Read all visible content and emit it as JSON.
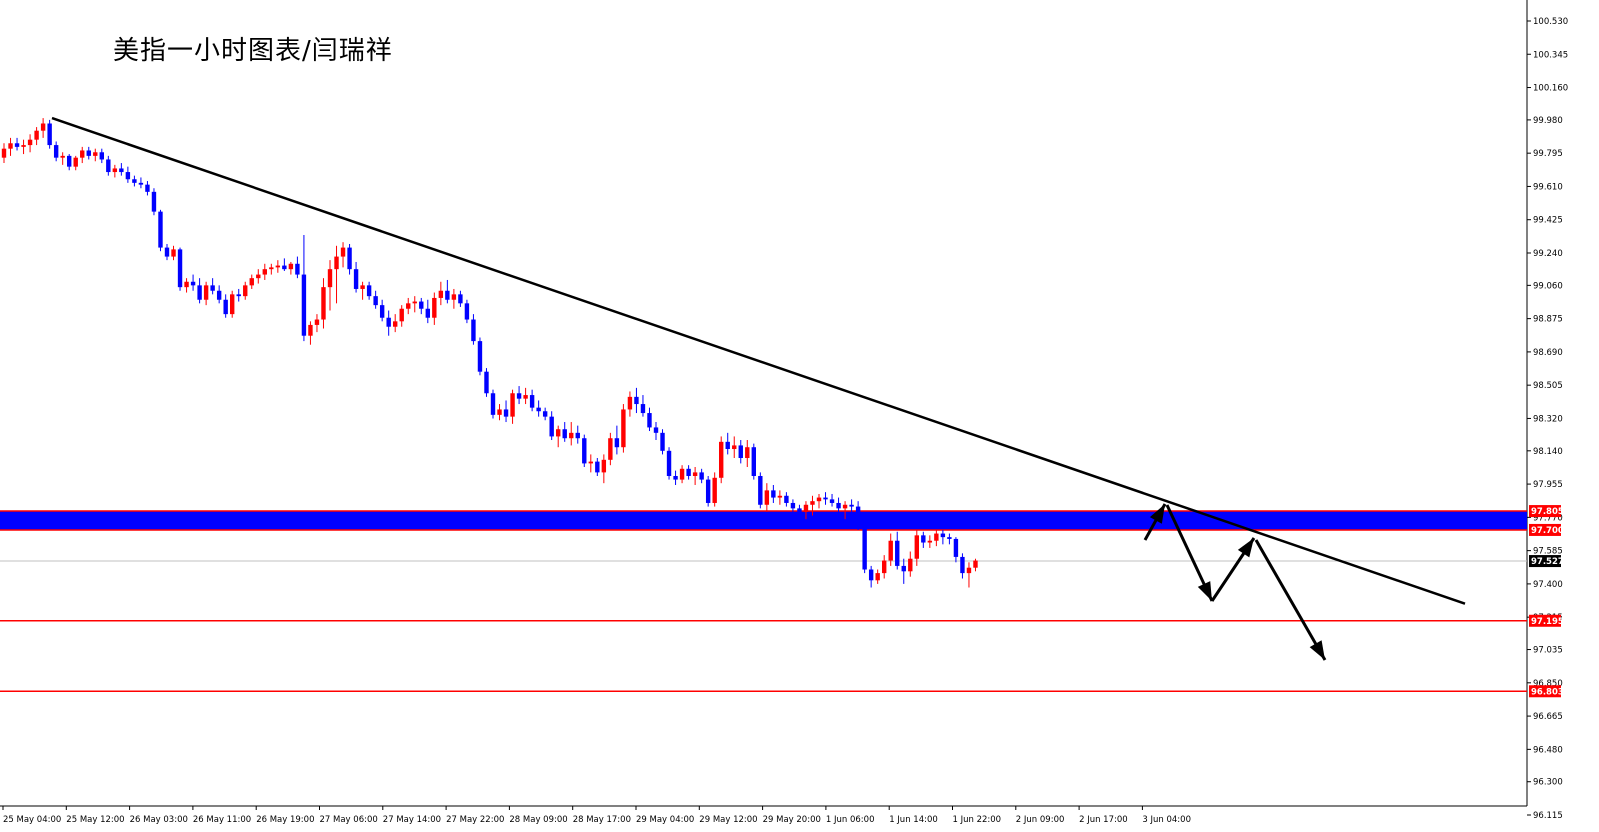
{
  "title": "美指一小时图表/闫瑞祥",
  "chart_data": {
    "type": "candlestick",
    "title": "美指一小时图表/闫瑞祥",
    "ylim": [
      96.115,
      100.63
    ],
    "y_ticks": [
      "100.530",
      "100.345",
      "100.160",
      "99.980",
      "99.795",
      "99.610",
      "99.425",
      "99.240",
      "99.060",
      "98.875",
      "98.690",
      "98.505",
      "98.320",
      "98.140",
      "97.955",
      "97.770",
      "97.585",
      "97.400",
      "97.215",
      "97.035",
      "96.850",
      "96.665",
      "96.480",
      "96.300",
      "96.115"
    ],
    "x_ticks": [
      "25 May 04:00",
      "25 May 12:00",
      "26 May 03:00",
      "26 May 11:00",
      "26 May 19:00",
      "27 May 06:00",
      "27 May 14:00",
      "27 May 22:00",
      "28 May 09:00",
      "28 May 17:00",
      "29 May 04:00",
      "29 May 12:00",
      "29 May 20:00",
      "1 Jun 06:00",
      "1 Jun 14:00",
      "1 Jun 22:00",
      "2 Jun 09:00",
      "2 Jun 17:00",
      "3 Jun 04:00"
    ],
    "price_levels": [
      {
        "label": "97.805",
        "value": 97.805,
        "color": "#ff0000"
      },
      {
        "label": "97.700",
        "value": 97.7,
        "color": "#ff0000"
      },
      {
        "label": "97.195",
        "value": 97.195,
        "color": "#ff0000"
      },
      {
        "label": "96.803",
        "value": 96.803,
        "color": "#ff0000"
      }
    ],
    "current_price": {
      "label": "97.527",
      "value": 97.527
    },
    "zone": {
      "from": 97.7,
      "to": 97.805,
      "color": "#0000ff"
    },
    "colors": {
      "bull": "#ff0000",
      "bear": "#0000ff",
      "trendline": "#000000",
      "arrows": "#000000"
    },
    "trendline": [
      [
        "25 May 04:00",
        99.99
      ],
      [
        "3 Jun 04:00+",
        97.29
      ]
    ],
    "candles": [
      {
        "o": 99.77,
        "h": 99.85,
        "l": 99.74,
        "c": 99.82
      },
      {
        "o": 99.82,
        "h": 99.88,
        "l": 99.78,
        "c": 99.85
      },
      {
        "o": 99.85,
        "h": 99.88,
        "l": 99.81,
        "c": 99.83
      },
      {
        "o": 99.83,
        "h": 99.87,
        "l": 99.79,
        "c": 99.84
      },
      {
        "o": 99.84,
        "h": 99.9,
        "l": 99.8,
        "c": 99.87
      },
      {
        "o": 99.87,
        "h": 99.94,
        "l": 99.84,
        "c": 99.92
      },
      {
        "o": 99.92,
        "h": 99.99,
        "l": 99.88,
        "c": 99.96
      },
      {
        "o": 99.96,
        "h": 99.98,
        "l": 99.82,
        "c": 99.84
      },
      {
        "o": 99.84,
        "h": 99.86,
        "l": 99.75,
        "c": 99.77
      },
      {
        "o": 99.77,
        "h": 99.8,
        "l": 99.73,
        "c": 99.78
      },
      {
        "o": 99.78,
        "h": 99.79,
        "l": 99.7,
        "c": 99.72
      },
      {
        "o": 99.72,
        "h": 99.78,
        "l": 99.7,
        "c": 99.77
      },
      {
        "o": 99.77,
        "h": 99.83,
        "l": 99.74,
        "c": 99.81
      },
      {
        "o": 99.81,
        "h": 99.83,
        "l": 99.76,
        "c": 99.78
      },
      {
        "o": 99.78,
        "h": 99.82,
        "l": 99.75,
        "c": 99.8
      },
      {
        "o": 99.8,
        "h": 99.82,
        "l": 99.74,
        "c": 99.76
      },
      {
        "o": 99.76,
        "h": 99.78,
        "l": 99.67,
        "c": 99.69
      },
      {
        "o": 99.69,
        "h": 99.73,
        "l": 99.66,
        "c": 99.71
      },
      {
        "o": 99.71,
        "h": 99.74,
        "l": 99.67,
        "c": 99.69
      },
      {
        "o": 99.69,
        "h": 99.72,
        "l": 99.63,
        "c": 99.65
      },
      {
        "o": 99.65,
        "h": 99.67,
        "l": 99.61,
        "c": 99.63
      },
      {
        "o": 99.63,
        "h": 99.66,
        "l": 99.6,
        "c": 99.62
      },
      {
        "o": 99.62,
        "h": 99.64,
        "l": 99.56,
        "c": 99.58
      },
      {
        "o": 99.58,
        "h": 99.6,
        "l": 99.45,
        "c": 99.47
      },
      {
        "o": 99.47,
        "h": 99.48,
        "l": 99.25,
        "c": 99.27
      },
      {
        "o": 99.27,
        "h": 99.29,
        "l": 99.2,
        "c": 99.22
      },
      {
        "o": 99.22,
        "h": 99.28,
        "l": 99.2,
        "c": 99.26
      },
      {
        "o": 99.26,
        "h": 99.27,
        "l": 99.03,
        "c": 99.05
      },
      {
        "o": 99.05,
        "h": 99.1,
        "l": 99.02,
        "c": 99.08
      },
      {
        "o": 99.08,
        "h": 99.12,
        "l": 99.03,
        "c": 99.06
      },
      {
        "o": 99.06,
        "h": 99.1,
        "l": 98.96,
        "c": 98.98
      },
      {
        "o": 98.98,
        "h": 99.08,
        "l": 98.95,
        "c": 99.06
      },
      {
        "o": 99.06,
        "h": 99.1,
        "l": 99.01,
        "c": 99.03
      },
      {
        "o": 99.03,
        "h": 99.06,
        "l": 98.96,
        "c": 98.98
      },
      {
        "o": 98.98,
        "h": 99.01,
        "l": 98.88,
        "c": 98.9
      },
      {
        "o": 98.9,
        "h": 99.03,
        "l": 98.88,
        "c": 99.01
      },
      {
        "o": 99.01,
        "h": 99.04,
        "l": 98.97,
        "c": 99.0
      },
      {
        "o": 99.0,
        "h": 99.08,
        "l": 98.98,
        "c": 99.06
      },
      {
        "o": 99.06,
        "h": 99.12,
        "l": 99.04,
        "c": 99.1
      },
      {
        "o": 99.1,
        "h": 99.15,
        "l": 99.07,
        "c": 99.12
      },
      {
        "o": 99.12,
        "h": 99.18,
        "l": 99.09,
        "c": 99.15
      },
      {
        "o": 99.15,
        "h": 99.18,
        "l": 99.12,
        "c": 99.16
      },
      {
        "o": 99.16,
        "h": 99.2,
        "l": 99.13,
        "c": 99.17
      },
      {
        "o": 99.17,
        "h": 99.21,
        "l": 99.14,
        "c": 99.15
      },
      {
        "o": 99.15,
        "h": 99.19,
        "l": 99.12,
        "c": 99.18
      },
      {
        "o": 99.18,
        "h": 99.22,
        "l": 99.1,
        "c": 99.12
      },
      {
        "o": 99.12,
        "h": 99.34,
        "l": 98.75,
        "c": 98.78
      },
      {
        "o": 98.78,
        "h": 98.86,
        "l": 98.73,
        "c": 98.84
      },
      {
        "o": 98.84,
        "h": 98.9,
        "l": 98.8,
        "c": 98.87
      },
      {
        "o": 98.87,
        "h": 99.1,
        "l": 98.82,
        "c": 99.05
      },
      {
        "o": 99.05,
        "h": 99.2,
        "l": 98.92,
        "c": 99.15
      },
      {
        "o": 99.15,
        "h": 99.28,
        "l": 98.96,
        "c": 99.22
      },
      {
        "o": 99.22,
        "h": 99.3,
        "l": 99.16,
        "c": 99.27
      },
      {
        "o": 99.27,
        "h": 99.29,
        "l": 99.12,
        "c": 99.15
      },
      {
        "o": 99.15,
        "h": 99.19,
        "l": 99.02,
        "c": 99.04
      },
      {
        "o": 99.04,
        "h": 99.08,
        "l": 98.98,
        "c": 99.06
      },
      {
        "o": 99.06,
        "h": 99.08,
        "l": 98.98,
        "c": 99.0
      },
      {
        "o": 99.0,
        "h": 99.03,
        "l": 98.93,
        "c": 98.95
      },
      {
        "o": 98.95,
        "h": 98.98,
        "l": 98.86,
        "c": 98.88
      },
      {
        "o": 98.88,
        "h": 98.92,
        "l": 98.78,
        "c": 98.83
      },
      {
        "o": 98.83,
        "h": 98.9,
        "l": 98.8,
        "c": 98.86
      },
      {
        "o": 98.86,
        "h": 98.95,
        "l": 98.83,
        "c": 98.93
      },
      {
        "o": 98.93,
        "h": 98.99,
        "l": 98.9,
        "c": 98.96
      },
      {
        "o": 98.96,
        "h": 99.0,
        "l": 98.91,
        "c": 98.97
      },
      {
        "o": 98.97,
        "h": 98.99,
        "l": 98.9,
        "c": 98.93
      },
      {
        "o": 98.93,
        "h": 98.98,
        "l": 98.85,
        "c": 98.88
      },
      {
        "o": 98.88,
        "h": 99.02,
        "l": 98.84,
        "c": 98.99
      },
      {
        "o": 98.99,
        "h": 99.08,
        "l": 98.95,
        "c": 99.03
      },
      {
        "o": 99.03,
        "h": 99.09,
        "l": 98.96,
        "c": 98.98
      },
      {
        "o": 98.98,
        "h": 99.04,
        "l": 98.93,
        "c": 99.01
      },
      {
        "o": 99.01,
        "h": 99.03,
        "l": 98.94,
        "c": 98.96
      },
      {
        "o": 98.96,
        "h": 98.98,
        "l": 98.85,
        "c": 98.87
      },
      {
        "o": 98.87,
        "h": 98.9,
        "l": 98.73,
        "c": 98.75
      },
      {
        "o": 98.75,
        "h": 98.77,
        "l": 98.56,
        "c": 98.58
      },
      {
        "o": 98.58,
        "h": 98.6,
        "l": 98.44,
        "c": 98.46
      },
      {
        "o": 98.46,
        "h": 98.48,
        "l": 98.32,
        "c": 98.34
      },
      {
        "o": 98.34,
        "h": 98.4,
        "l": 98.31,
        "c": 98.37
      },
      {
        "o": 98.37,
        "h": 98.42,
        "l": 98.3,
        "c": 98.33
      },
      {
        "o": 98.33,
        "h": 98.48,
        "l": 98.29,
        "c": 98.46
      },
      {
        "o": 98.46,
        "h": 98.5,
        "l": 98.4,
        "c": 98.43
      },
      {
        "o": 98.43,
        "h": 98.49,
        "l": 98.4,
        "c": 98.45
      },
      {
        "o": 98.45,
        "h": 98.48,
        "l": 98.36,
        "c": 98.38
      },
      {
        "o": 98.38,
        "h": 98.42,
        "l": 98.33,
        "c": 98.36
      },
      {
        "o": 98.36,
        "h": 98.38,
        "l": 98.31,
        "c": 98.33
      },
      {
        "o": 98.33,
        "h": 98.36,
        "l": 98.2,
        "c": 98.22
      },
      {
        "o": 98.22,
        "h": 98.28,
        "l": 98.16,
        "c": 98.26
      },
      {
        "o": 98.26,
        "h": 98.3,
        "l": 98.19,
        "c": 98.21
      },
      {
        "o": 98.21,
        "h": 98.3,
        "l": 98.17,
        "c": 98.24
      },
      {
        "o": 98.24,
        "h": 98.28,
        "l": 98.18,
        "c": 98.21
      },
      {
        "o": 98.21,
        "h": 98.23,
        "l": 98.05,
        "c": 98.07
      },
      {
        "o": 98.07,
        "h": 98.12,
        "l": 98.02,
        "c": 98.08
      },
      {
        "o": 98.08,
        "h": 98.1,
        "l": 98.0,
        "c": 98.02
      },
      {
        "o": 98.02,
        "h": 98.12,
        "l": 97.96,
        "c": 98.09
      },
      {
        "o": 98.09,
        "h": 98.24,
        "l": 98.06,
        "c": 98.21
      },
      {
        "o": 98.21,
        "h": 98.28,
        "l": 98.12,
        "c": 98.16
      },
      {
        "o": 98.16,
        "h": 98.4,
        "l": 98.13,
        "c": 98.37
      },
      {
        "o": 98.37,
        "h": 98.47,
        "l": 98.33,
        "c": 98.44
      },
      {
        "o": 98.44,
        "h": 98.49,
        "l": 98.35,
        "c": 98.4
      },
      {
        "o": 98.4,
        "h": 98.45,
        "l": 98.33,
        "c": 98.35
      },
      {
        "o": 98.35,
        "h": 98.38,
        "l": 98.25,
        "c": 98.27
      },
      {
        "o": 98.27,
        "h": 98.3,
        "l": 98.2,
        "c": 98.24
      },
      {
        "o": 98.24,
        "h": 98.26,
        "l": 98.12,
        "c": 98.14
      },
      {
        "o": 98.14,
        "h": 98.16,
        "l": 97.98,
        "c": 98.0
      },
      {
        "o": 98.0,
        "h": 98.03,
        "l": 97.95,
        "c": 97.98
      },
      {
        "o": 97.98,
        "h": 98.06,
        "l": 97.96,
        "c": 98.04
      },
      {
        "o": 98.04,
        "h": 98.06,
        "l": 97.98,
        "c": 98.0
      },
      {
        "o": 98.0,
        "h": 98.05,
        "l": 97.95,
        "c": 98.02
      },
      {
        "o": 98.02,
        "h": 98.04,
        "l": 97.96,
        "c": 97.98
      },
      {
        "o": 97.98,
        "h": 98.0,
        "l": 97.83,
        "c": 97.85
      },
      {
        "o": 97.85,
        "h": 98.02,
        "l": 97.83,
        "c": 97.99
      },
      {
        "o": 97.99,
        "h": 98.22,
        "l": 97.96,
        "c": 98.19
      },
      {
        "o": 98.19,
        "h": 98.24,
        "l": 98.12,
        "c": 98.15
      },
      {
        "o": 98.15,
        "h": 98.22,
        "l": 98.1,
        "c": 98.17
      },
      {
        "o": 98.17,
        "h": 98.2,
        "l": 98.07,
        "c": 98.1
      },
      {
        "o": 98.1,
        "h": 98.2,
        "l": 98.05,
        "c": 98.16
      },
      {
        "o": 98.16,
        "h": 98.18,
        "l": 97.98,
        "c": 98.0
      },
      {
        "o": 98.0,
        "h": 98.02,
        "l": 97.82,
        "c": 97.84
      },
      {
        "o": 97.84,
        "h": 97.96,
        "l": 97.8,
        "c": 97.92
      },
      {
        "o": 97.92,
        "h": 97.95,
        "l": 97.85,
        "c": 97.88
      },
      {
        "o": 97.88,
        "h": 97.92,
        "l": 97.84,
        "c": 97.89
      },
      {
        "o": 97.89,
        "h": 97.91,
        "l": 97.83,
        "c": 97.85
      },
      {
        "o": 97.85,
        "h": 97.87,
        "l": 97.8,
        "c": 97.82
      },
      {
        "o": 97.82,
        "h": 97.84,
        "l": 97.78,
        "c": 97.8
      },
      {
        "o": 97.8,
        "h": 97.86,
        "l": 97.76,
        "c": 97.84
      },
      {
        "o": 97.84,
        "h": 97.89,
        "l": 97.78,
        "c": 97.86
      },
      {
        "o": 97.86,
        "h": 97.9,
        "l": 97.82,
        "c": 97.88
      },
      {
        "o": 97.88,
        "h": 97.91,
        "l": 97.84,
        "c": 97.87
      },
      {
        "o": 97.87,
        "h": 97.9,
        "l": 97.83,
        "c": 97.85
      },
      {
        "o": 97.85,
        "h": 97.88,
        "l": 97.8,
        "c": 97.82
      },
      {
        "o": 97.82,
        "h": 97.86,
        "l": 97.76,
        "c": 97.84
      },
      {
        "o": 97.84,
        "h": 97.87,
        "l": 97.8,
        "c": 97.83
      },
      {
        "o": 97.83,
        "h": 97.86,
        "l": 97.7,
        "c": 97.72
      },
      {
        "o": 97.72,
        "h": 97.74,
        "l": 97.46,
        "c": 97.48
      },
      {
        "o": 97.48,
        "h": 97.5,
        "l": 97.38,
        "c": 97.42
      },
      {
        "o": 97.42,
        "h": 97.48,
        "l": 97.4,
        "c": 97.46
      },
      {
        "o": 97.46,
        "h": 97.56,
        "l": 97.43,
        "c": 97.53
      },
      {
        "o": 97.53,
        "h": 97.68,
        "l": 97.5,
        "c": 97.64
      },
      {
        "o": 97.64,
        "h": 97.69,
        "l": 97.48,
        "c": 97.5
      },
      {
        "o": 97.5,
        "h": 97.54,
        "l": 97.4,
        "c": 97.47
      },
      {
        "o": 97.47,
        "h": 97.58,
        "l": 97.44,
        "c": 97.54
      },
      {
        "o": 97.54,
        "h": 97.7,
        "l": 97.5,
        "c": 97.67
      },
      {
        "o": 97.67,
        "h": 97.69,
        "l": 97.6,
        "c": 97.63
      },
      {
        "o": 97.63,
        "h": 97.67,
        "l": 97.6,
        "c": 97.64
      },
      {
        "o": 97.64,
        "h": 97.7,
        "l": 97.61,
        "c": 97.68
      },
      {
        "o": 97.68,
        "h": 97.7,
        "l": 97.62,
        "c": 97.66
      },
      {
        "o": 97.66,
        "h": 97.68,
        "l": 97.62,
        "c": 97.65
      },
      {
        "o": 97.65,
        "h": 97.66,
        "l": 97.52,
        "c": 97.55
      },
      {
        "o": 97.55,
        "h": 97.57,
        "l": 97.43,
        "c": 97.46
      },
      {
        "o": 97.46,
        "h": 97.52,
        "l": 97.38,
        "c": 97.49
      },
      {
        "o": 97.49,
        "h": 97.54,
        "l": 97.47,
        "c": 97.53
      }
    ]
  }
}
